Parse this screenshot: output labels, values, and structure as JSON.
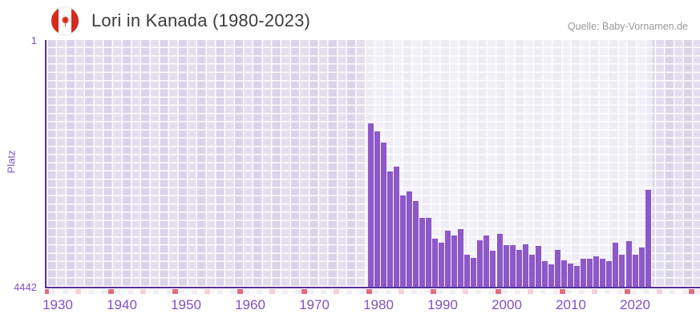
{
  "header": {
    "title": "Lori in Kanada (1980-2023)",
    "source": "Quelle: Baby-Vornamen.de",
    "flag_icon": "canada-flag-icon"
  },
  "chart_data": {
    "type": "bar",
    "title": "Lori in Kanada (1980-2023)",
    "xlabel": "",
    "ylabel": "Platz",
    "y_axis": {
      "top_label": "1",
      "bottom_label": "4442",
      "min": 1,
      "max": 4442,
      "inverted": true
    },
    "x_tick_labels": [
      "1930",
      "1940",
      "1950",
      "1960",
      "1970",
      "1980",
      "1990",
      "2000",
      "2010",
      "2020"
    ],
    "x_tick_start_year": 1930,
    "x_tick_step_years": 10,
    "grid": true,
    "legend": "none",
    "highlight_band_years": {
      "from": 1980,
      "to": 2023
    },
    "decade_marker_years_red": [
      1930,
      1940,
      1950,
      1960,
      1970,
      1980,
      1990,
      2000,
      2010,
      2020,
      2030
    ],
    "half_decade_marker_pink": [
      1935,
      1945,
      1955,
      1965,
      1975,
      1985,
      1995,
      2005,
      2015,
      2025
    ],
    "years": [
      1980,
      1981,
      1982,
      1983,
      1984,
      1985,
      1986,
      1987,
      1988,
      1989,
      1990,
      1991,
      1992,
      1993,
      1994,
      1995,
      1996,
      1997,
      1998,
      1999,
      2000,
      2001,
      2002,
      2003,
      2004,
      2005,
      2006,
      2007,
      2008,
      2009,
      2010,
      2011,
      2012,
      2013,
      2014,
      2015,
      2016,
      2017,
      2018,
      2019,
      2020,
      2021,
      2022,
      2023
    ],
    "ranks": [
      1501,
      1650,
      1842,
      2366,
      2275,
      2800,
      2733,
      2905,
      3202,
      3202,
      3582,
      3654,
      3437,
      3515,
      3400,
      3858,
      3925,
      3608,
      3515,
      3800,
      3486,
      3692,
      3690,
      3785,
      3677,
      3870,
      3702,
      3981,
      4038,
      3778,
      3966,
      4024,
      4072,
      3930,
      3930,
      3899,
      3941,
      3976,
      3653,
      3870,
      3616,
      3861,
      3740,
      2700
    ],
    "colors": {
      "bar": "#8d58c7",
      "axis_line": "#54309a",
      "axis_text": "#7e52c3",
      "title_text": "#3d3d3d",
      "source_text": "#999999",
      "plot_background": "#e3deef",
      "highlight_band": "rgba(255,255,255,0.55)",
      "decade_marker_red": "#e26b7c",
      "half_decade_marker_pink": "#f5cfdb",
      "strip_cell_odd": "#f1edf9",
      "strip_cell_even": "#fbfafd",
      "flag_red": "#d52b1e"
    }
  }
}
